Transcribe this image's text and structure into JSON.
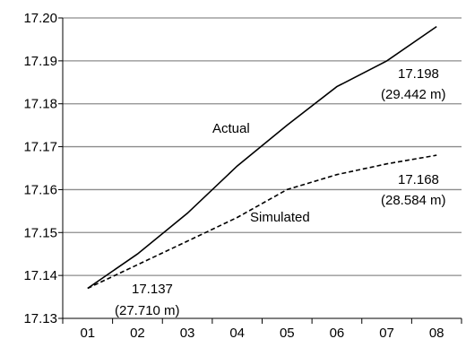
{
  "chart_data": {
    "type": "line",
    "title": "",
    "xlabel": "",
    "ylabel": "",
    "categories": [
      "01",
      "02",
      "03",
      "04",
      "05",
      "06",
      "07",
      "08"
    ],
    "ylim": [
      17.13,
      17.2
    ],
    "yticks": [
      "17.13",
      "17.14",
      "17.15",
      "17.16",
      "17.17",
      "17.18",
      "17.19",
      "17.20"
    ],
    "grid": true,
    "legend": "none",
    "series": [
      {
        "name": "Actual",
        "line_style": "solid",
        "values": [
          17.137,
          17.145,
          17.1545,
          17.1655,
          17.175,
          17.184,
          17.19,
          17.198
        ]
      },
      {
        "name": "Simulated",
        "line_style": "dashed",
        "values": [
          17.137,
          17.1425,
          17.148,
          17.1535,
          17.16,
          17.1635,
          17.166,
          17.168
        ]
      }
    ],
    "annotations": [
      {
        "text": "Actual"
      },
      {
        "text": "Simulated"
      },
      {
        "text": "17.198"
      },
      {
        "text": "(29.442 m)"
      },
      {
        "text": "17.168"
      },
      {
        "text": "(28.584 m)"
      },
      {
        "text": "17.137"
      },
      {
        "text": "(27.710 m)"
      }
    ]
  }
}
